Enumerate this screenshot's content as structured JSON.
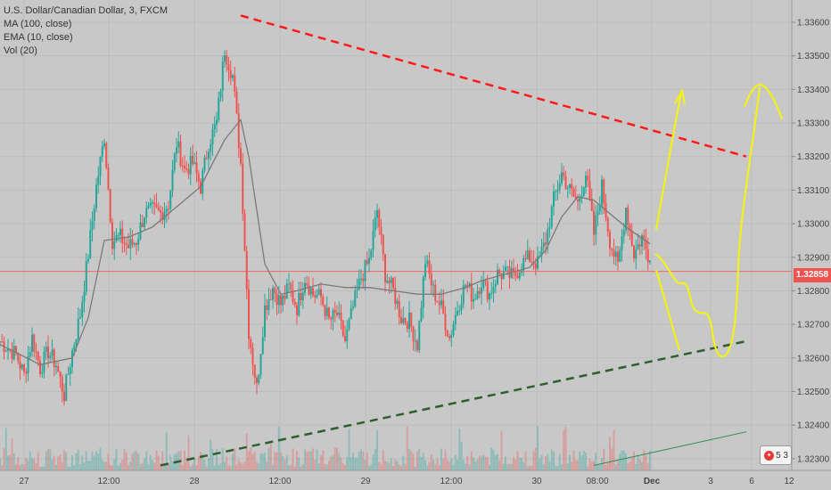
{
  "header": {
    "symbol_line": "U.S. Dollar/Canadian Dollar, 3, FXCM",
    "ma_line": "MA (100, close)",
    "ema_line": "EMA (10, close)",
    "vol_line": "Vol (20)"
  },
  "last_price_label": "1.32858",
  "badge": {
    "icon": "canada-flag-icon",
    "text": "5 3"
  },
  "colors": {
    "background": "#c8c8c8",
    "up_candle": "#26a69a",
    "down_candle": "#ef5350",
    "ma_line": "#7a7a7a",
    "resistance_line": "#ff1a1a",
    "support_line": "#2e5f2e",
    "projection": "#f2f21a",
    "price_line": "#ef5350"
  },
  "chart_data": {
    "type": "candlestick",
    "symbol": "U.S. Dollar/Canadian Dollar",
    "timeframe": "3",
    "source": "FXCM",
    "last_price": 1.32858,
    "y_ticks": [
      "1.33600",
      "1.33500",
      "1.33400",
      "1.33300",
      "1.33200",
      "1.33100",
      "1.33000",
      "1.32900",
      "1.32800",
      "1.32700",
      "1.32600",
      "1.32500",
      "1.32400",
      "1.32300"
    ],
    "ylim": [
      1.3227,
      1.3367
    ],
    "x_ticks": [
      "27",
      "12:00",
      "28",
      "12:00",
      "29",
      "12:00",
      "30",
      "08:00",
      "Dec",
      "3",
      "6",
      "12"
    ],
    "key_prices": [
      [
        0,
        1.3265
      ],
      [
        2,
        1.3261
      ],
      [
        3,
        1.3255
      ],
      [
        4,
        1.3266
      ],
      [
        5,
        1.3257
      ],
      [
        6,
        1.3262
      ],
      [
        7,
        1.3258
      ],
      [
        8,
        1.3249
      ],
      [
        9,
        1.3262
      ],
      [
        10,
        1.3273
      ],
      [
        11,
        1.3291
      ],
      [
        12,
        1.3311
      ],
      [
        13,
        1.3326
      ],
      [
        14,
        1.3295
      ],
      [
        15,
        1.3296
      ],
      [
        16,
        1.3293
      ],
      [
        17,
        1.3295
      ],
      [
        18,
        1.3303
      ],
      [
        19,
        1.3304
      ],
      [
        20,
        1.3303
      ],
      [
        21,
        1.3306
      ],
      [
        22,
        1.3324
      ],
      [
        23,
        1.3316
      ],
      [
        24,
        1.3318
      ],
      [
        25,
        1.3311
      ],
      [
        26,
        1.3324
      ],
      [
        27,
        1.333
      ],
      [
        28,
        1.3352
      ],
      [
        29,
        1.3344
      ],
      [
        30,
        1.3318
      ],
      [
        31,
        1.3268
      ],
      [
        32,
        1.3251
      ],
      [
        33,
        1.3275
      ],
      [
        34,
        1.3281
      ],
      [
        35,
        1.3276
      ],
      [
        36,
        1.3281
      ],
      [
        37,
        1.3275
      ],
      [
        38,
        1.3284
      ],
      [
        39,
        1.3279
      ],
      [
        40,
        1.3278
      ],
      [
        41,
        1.3271
      ],
      [
        42,
        1.3273
      ],
      [
        43,
        1.3265
      ],
      [
        44,
        1.3275
      ],
      [
        45,
        1.3284
      ],
      [
        46,
        1.3289
      ],
      [
        47,
        1.3304
      ],
      [
        48,
        1.3285
      ],
      [
        49,
        1.328
      ],
      [
        50,
        1.3272
      ],
      [
        51,
        1.3271
      ],
      [
        52,
        1.3264
      ],
      [
        53,
        1.3289
      ],
      [
        54,
        1.328
      ],
      [
        55,
        1.3275
      ],
      [
        56,
        1.3266
      ],
      [
        57,
        1.3275
      ],
      [
        58,
        1.3282
      ],
      [
        59,
        1.3278
      ],
      [
        60,
        1.3283
      ],
      [
        61,
        1.3279
      ],
      [
        62,
        1.3285
      ],
      [
        63,
        1.3285
      ],
      [
        64,
        1.3284
      ],
      [
        65,
        1.3288
      ],
      [
        66,
        1.329
      ],
      [
        67,
        1.3288
      ],
      [
        68,
        1.3295
      ],
      [
        69,
        1.3307
      ],
      [
        70,
        1.3315
      ],
      [
        71,
        1.331
      ],
      [
        72,
        1.3306
      ],
      [
        73,
        1.3315
      ],
      [
        74,
        1.3297
      ],
      [
        75,
        1.3311
      ],
      [
        76,
        1.3295
      ],
      [
        77,
        1.3287
      ],
      [
        78,
        1.3305
      ],
      [
        79,
        1.3291
      ],
      [
        80,
        1.3296
      ],
      [
        81,
        1.3289
      ]
    ],
    "ma_100": [
      [
        0,
        1.3264
      ],
      [
        5,
        1.3258
      ],
      [
        9,
        1.326
      ],
      [
        11,
        1.3272
      ],
      [
        13,
        1.3295
      ],
      [
        16,
        1.3296
      ],
      [
        19,
        1.3299
      ],
      [
        22,
        1.3305
      ],
      [
        25,
        1.3311
      ],
      [
        28,
        1.3325
      ],
      [
        30,
        1.3331
      ],
      [
        31,
        1.332
      ],
      [
        33,
        1.3288
      ],
      [
        35,
        1.3279
      ],
      [
        37,
        1.328
      ],
      [
        40,
        1.3282
      ],
      [
        43,
        1.3281
      ],
      [
        46,
        1.3281
      ],
      [
        49,
        1.328
      ],
      [
        52,
        1.3279
      ],
      [
        55,
        1.3279
      ],
      [
        58,
        1.3281
      ],
      [
        60,
        1.3283
      ],
      [
        63,
        1.3285
      ],
      [
        66,
        1.3287
      ],
      [
        68,
        1.3292
      ],
      [
        70,
        1.3302
      ],
      [
        72,
        1.3308
      ],
      [
        74,
        1.3307
      ],
      [
        76,
        1.3303
      ],
      [
        78,
        1.3299
      ],
      [
        81,
        1.3294
      ]
    ],
    "resistance_line": [
      [
        30,
        1.3362
      ],
      [
        93,
        1.332
      ]
    ],
    "support_line": [
      [
        20,
        1.3228
      ],
      [
        93,
        1.3265
      ]
    ],
    "lower_thin_line": [
      [
        74,
        1.3228
      ],
      [
        93,
        1.3238
      ]
    ]
  }
}
